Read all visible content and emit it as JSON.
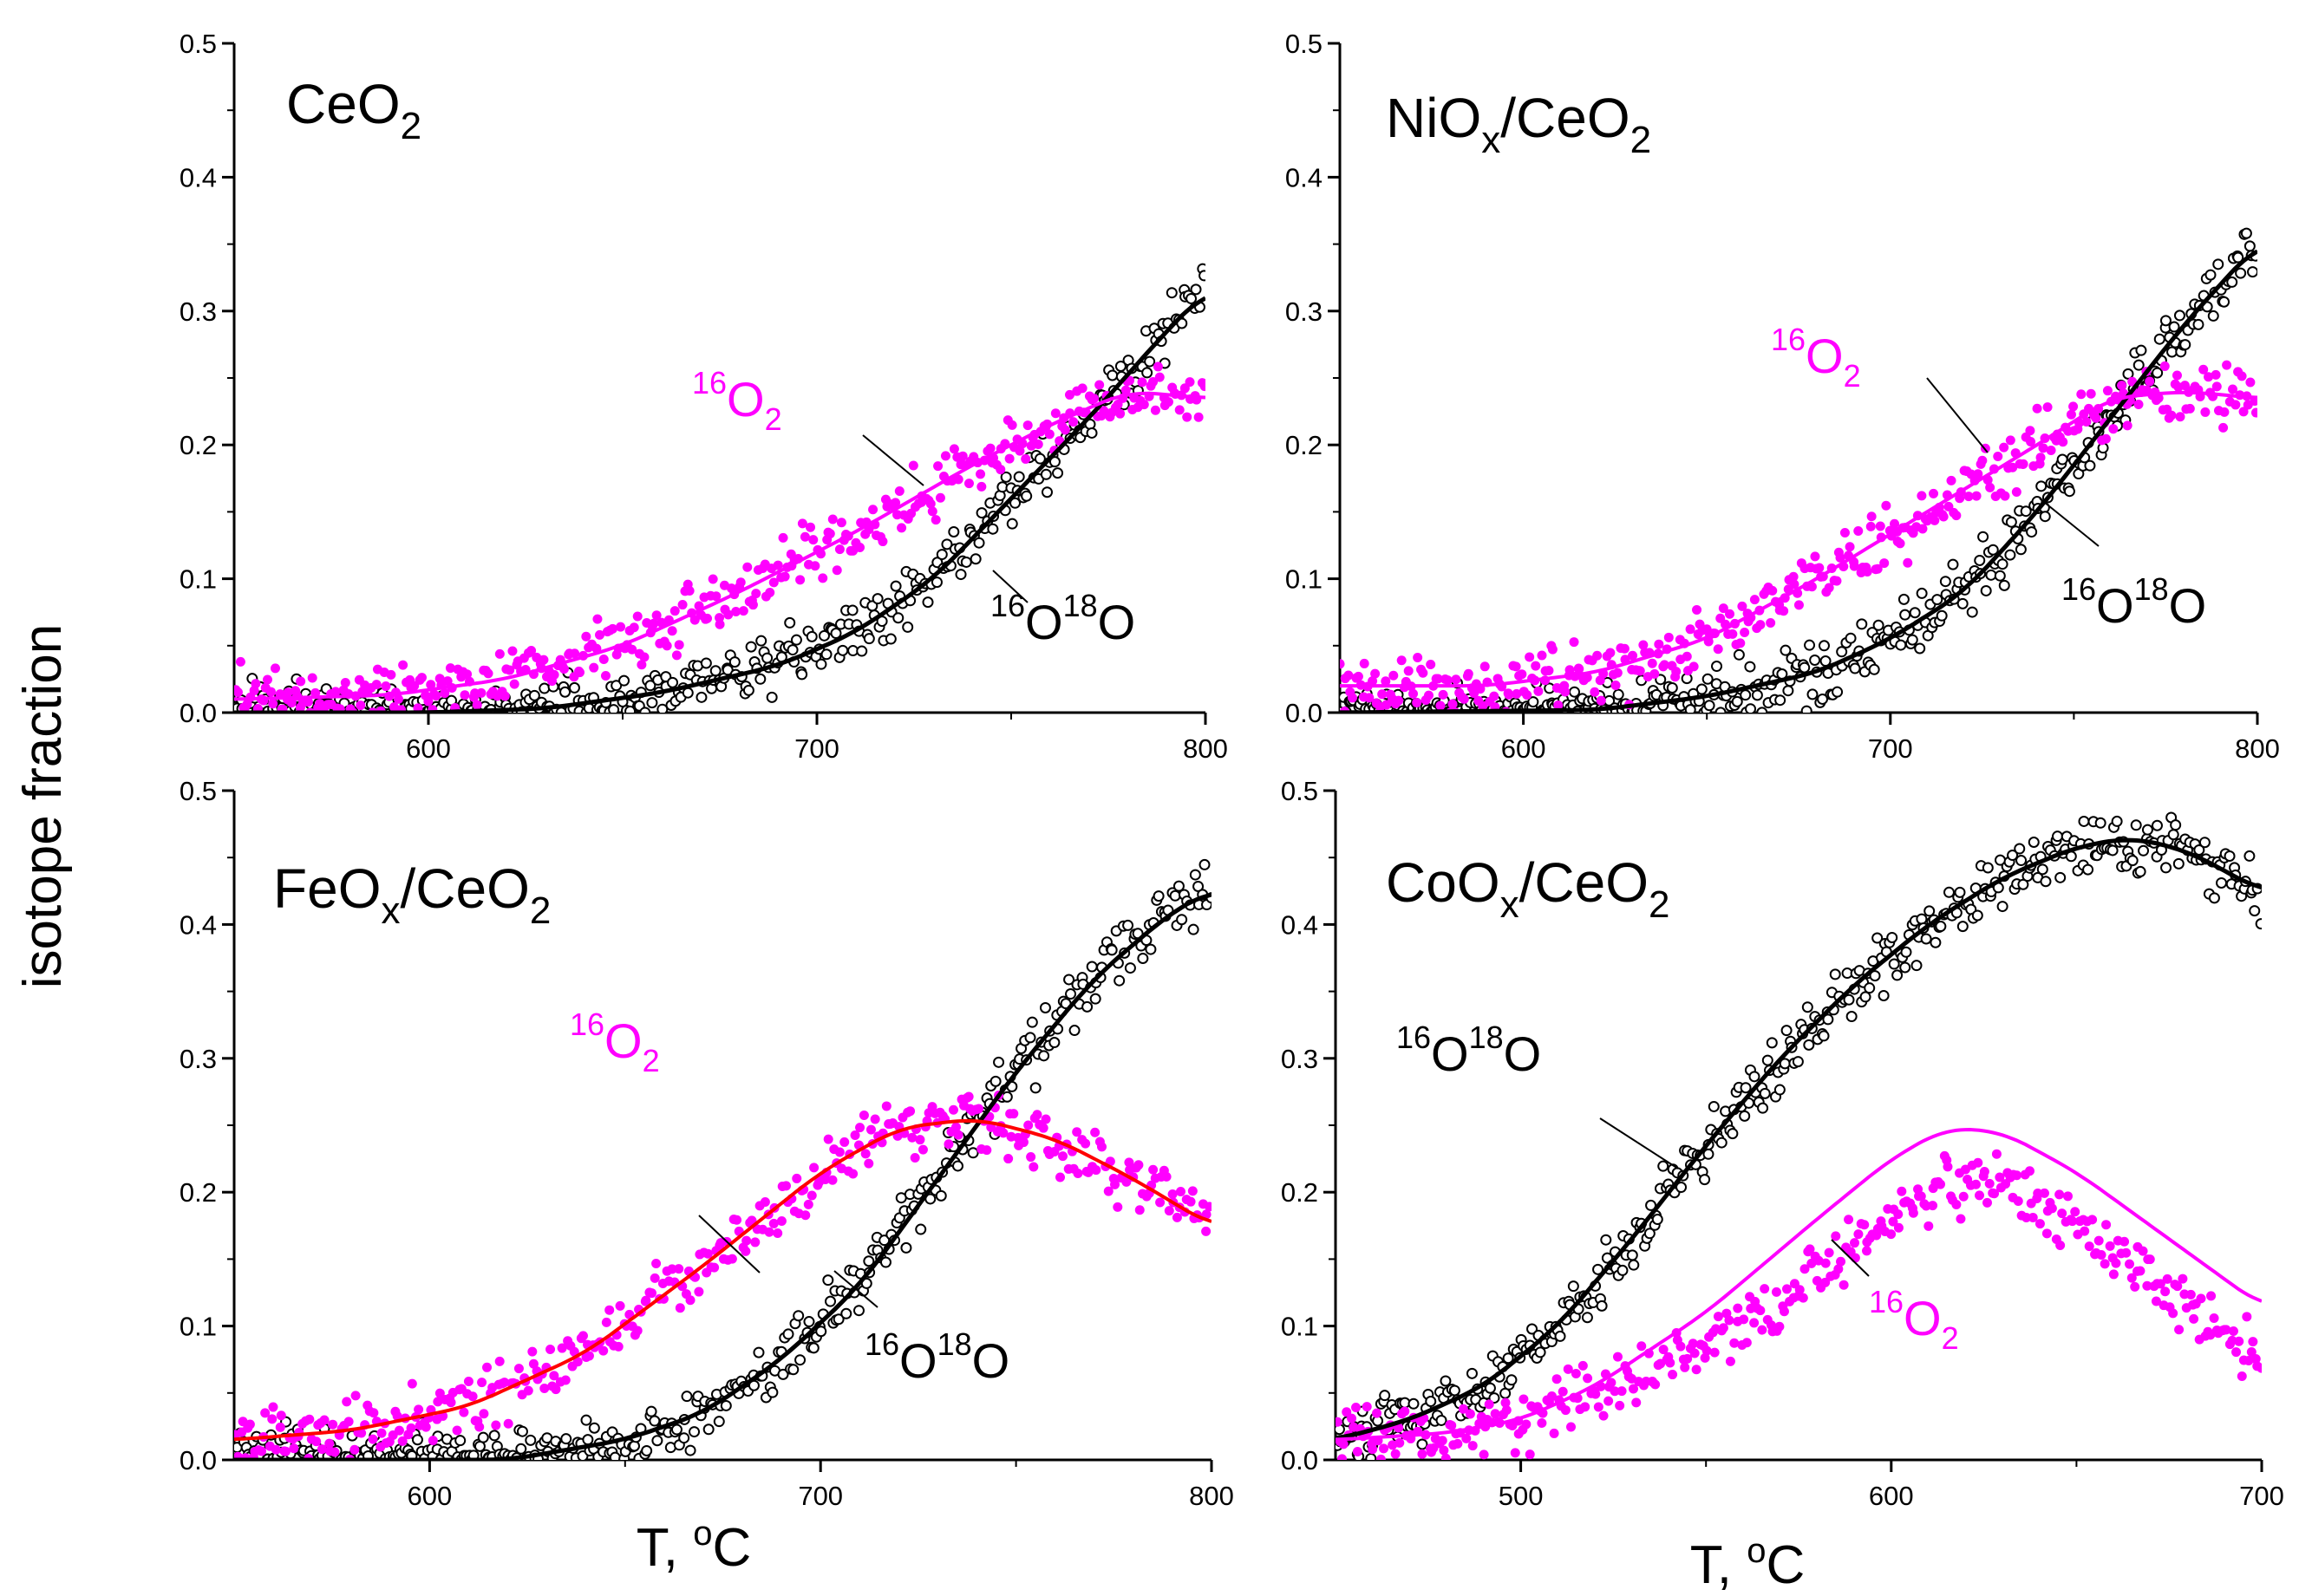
{
  "figure": {
    "ylabel": "isotope fraction",
    "xlabel_prefix": "T, ",
    "xlabel_unit_sup": "o",
    "xlabel_unit": "C"
  },
  "chart_data": [
    {
      "id": "ceo2",
      "type": "scatter",
      "title": {
        "main": "CeO",
        "sub": "2"
      },
      "xlim": [
        550,
        800
      ],
      "ylim": [
        0,
        0.5
      ],
      "xticks": [
        600,
        700,
        800
      ],
      "yticks": [
        0.0,
        0.1,
        0.2,
        0.3,
        0.4,
        0.5
      ],
      "series": [
        {
          "name": "16O18O",
          "marker": "open-circle",
          "color": "#000000",
          "curve": [
            [
              550,
              0.0
            ],
            [
              600,
              0.0
            ],
            [
              630,
              0.003
            ],
            [
              660,
              0.015
            ],
            [
              690,
              0.035
            ],
            [
              710,
              0.06
            ],
            [
              730,
              0.1
            ],
            [
              750,
              0.16
            ],
            [
              770,
              0.22
            ],
            [
              790,
              0.285
            ],
            [
              800,
              0.315
            ]
          ]
        },
        {
          "name": "16O2",
          "marker": "filled-circle",
          "color": "#ff00ff",
          "curve": [
            [
              550,
              0.01
            ],
            [
              590,
              0.013
            ],
            [
              620,
              0.025
            ],
            [
              650,
              0.05
            ],
            [
              680,
              0.09
            ],
            [
              710,
              0.135
            ],
            [
              740,
              0.185
            ],
            [
              760,
              0.215
            ],
            [
              780,
              0.24
            ],
            [
              800,
              0.235
            ]
          ]
        }
      ],
      "annotations": [
        {
          "series": "16O2",
          "text": [
            "16",
            "O",
            "2"
          ]
        },
        {
          "series": "16O18O",
          "text": [
            "16",
            "O",
            "18",
            "O"
          ]
        }
      ]
    },
    {
      "id": "niox",
      "type": "scatter",
      "title": {
        "main": "NiO",
        "sub": "x",
        "rest": "/CeO",
        "sub2": "2"
      },
      "xlim": [
        550,
        800
      ],
      "ylim": [
        0,
        0.5
      ],
      "xticks": [
        600,
        700,
        800
      ],
      "yticks": [
        0.0,
        0.1,
        0.2,
        0.3,
        0.4,
        0.5
      ],
      "series": [
        {
          "name": "16O18O",
          "marker": "open-circle",
          "color": "#000000",
          "curve": [
            [
              550,
              0.0
            ],
            [
              620,
              0.002
            ],
            [
              650,
              0.012
            ],
            [
              680,
              0.03
            ],
            [
              700,
              0.055
            ],
            [
              720,
              0.09
            ],
            [
              740,
              0.15
            ],
            [
              760,
              0.22
            ],
            [
              780,
              0.29
            ],
            [
              800,
              0.35
            ]
          ]
        },
        {
          "name": "16O2",
          "marker": "filled-circle",
          "color": "#ff00ff",
          "curve": [
            [
              550,
              0.02
            ],
            [
              590,
              0.02
            ],
            [
              620,
              0.03
            ],
            [
              650,
              0.055
            ],
            [
              680,
              0.1
            ],
            [
              710,
              0.15
            ],
            [
              740,
              0.2
            ],
            [
              760,
              0.235
            ],
            [
              780,
              0.24
            ],
            [
              800,
              0.235
            ]
          ]
        }
      ],
      "annotations": [
        {
          "series": "16O2",
          "text": [
            "16",
            "O",
            "2"
          ]
        },
        {
          "series": "16O18O",
          "text": [
            "16",
            "O",
            "18",
            "O"
          ]
        }
      ]
    },
    {
      "id": "feox",
      "type": "scatter",
      "title": {
        "main": "FeO",
        "sub": "x",
        "rest": "/CeO",
        "sub2": "2"
      },
      "xlim": [
        550,
        800
      ],
      "ylim": [
        0,
        0.5
      ],
      "xticks": [
        600,
        700,
        800
      ],
      "yticks": [
        0.0,
        0.1,
        0.2,
        0.3,
        0.4,
        0.5
      ],
      "series": [
        {
          "name": "16O18O",
          "marker": "open-circle",
          "color": "#000000",
          "curve": [
            [
              550,
              0.0
            ],
            [
              620,
              0.0
            ],
            [
              650,
              0.015
            ],
            [
              670,
              0.035
            ],
            [
              690,
              0.075
            ],
            [
              710,
              0.13
            ],
            [
              730,
              0.21
            ],
            [
              750,
              0.29
            ],
            [
              770,
              0.36
            ],
            [
              790,
              0.41
            ],
            [
              800,
              0.425
            ]
          ]
        },
        {
          "name": "16O2",
          "marker": "filled-circle",
          "color": "#ff00ff",
          "fit_color": "#ff0000",
          "curve": [
            [
              550,
              0.015
            ],
            [
              580,
              0.022
            ],
            [
              610,
              0.04
            ],
            [
              640,
              0.08
            ],
            [
              670,
              0.145
            ],
            [
              700,
              0.215
            ],
            [
              720,
              0.248
            ],
            [
              740,
              0.255
            ],
            [
              760,
              0.24
            ],
            [
              780,
              0.21
            ],
            [
              800,
              0.175
            ]
          ]
        }
      ],
      "annotations": [
        {
          "series": "16O2",
          "text": [
            "16",
            "O",
            "2"
          ]
        },
        {
          "series": "16O18O",
          "text": [
            "16",
            "O",
            "18",
            "O"
          ]
        }
      ]
    },
    {
      "id": "coox",
      "type": "scatter",
      "title": {
        "main": "CoO",
        "sub": "x",
        "rest": "/CeO",
        "sub2": "2"
      },
      "xlim": [
        450,
        700
      ],
      "ylim": [
        0,
        0.5
      ],
      "xticks": [
        500,
        600,
        700
      ],
      "yticks": [
        0.0,
        0.1,
        0.2,
        0.3,
        0.4,
        0.5
      ],
      "series": [
        {
          "name": "16O18O",
          "marker": "open-circle",
          "color": "#000000",
          "curve": [
            [
              450,
              0.015
            ],
            [
              470,
              0.03
            ],
            [
              490,
              0.055
            ],
            [
              510,
              0.1
            ],
            [
              530,
              0.165
            ],
            [
              550,
              0.235
            ],
            [
              570,
              0.3
            ],
            [
              590,
              0.355
            ],
            [
              610,
              0.4
            ],
            [
              630,
              0.435
            ],
            [
              650,
              0.458
            ],
            [
              665,
              0.465
            ],
            [
              680,
              0.455
            ],
            [
              700,
              0.425
            ]
          ]
        },
        {
          "name": "16O2",
          "marker": "filled-circle",
          "color": "#ff00ff",
          "curve": [
            [
              450,
              0.015
            ],
            [
              480,
              0.02
            ],
            [
              500,
              0.03
            ],
            [
              520,
              0.055
            ],
            [
              550,
              0.11
            ],
            [
              580,
              0.18
            ],
            [
              600,
              0.225
            ],
            [
              615,
              0.248
            ],
            [
              630,
              0.245
            ],
            [
              650,
              0.215
            ],
            [
              670,
              0.175
            ],
            [
              700,
              0.115
            ]
          ],
          "points_shift": -0.04
        }
      ],
      "annotations": [
        {
          "series": "16O18O",
          "text": [
            "16",
            "O",
            "18",
            "O"
          ]
        },
        {
          "series": "16O2",
          "text": [
            "16",
            "O",
            "2"
          ]
        }
      ]
    }
  ]
}
